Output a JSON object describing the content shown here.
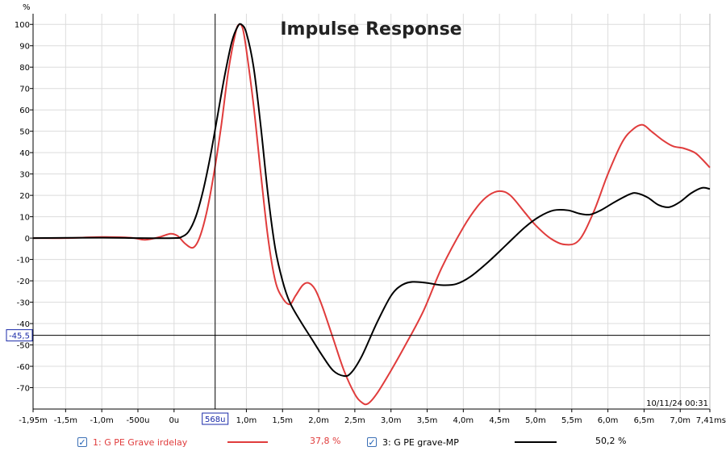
{
  "chart_data": {
    "type": "line",
    "title": "Impulse Response",
    "ylabel": "%",
    "xlabel": "",
    "x_unit": "ms",
    "xlim": [
      -1.95,
      7.41
    ],
    "ylim": [
      -80,
      105
    ],
    "grid": true,
    "x_ticks": [
      {
        "v": -1.95,
        "label": "-1,95m"
      },
      {
        "v": -1.5,
        "label": "-1,5m"
      },
      {
        "v": -1.0,
        "label": "-1,0m"
      },
      {
        "v": -0.5,
        "label": "-500u"
      },
      {
        "v": 0.0,
        "label": "0u"
      },
      {
        "v": 1.0,
        "label": "1,0m"
      },
      {
        "v": 1.5,
        "label": "1,5m"
      },
      {
        "v": 2.0,
        "label": "2,0m"
      },
      {
        "v": 2.5,
        "label": "2,5m"
      },
      {
        "v": 3.0,
        "label": "3,0m"
      },
      {
        "v": 3.5,
        "label": "3,5m"
      },
      {
        "v": 4.0,
        "label": "4,0m"
      },
      {
        "v": 4.5,
        "label": "4,5m"
      },
      {
        "v": 5.0,
        "label": "5,0m"
      },
      {
        "v": 5.5,
        "label": "5,5m"
      },
      {
        "v": 6.0,
        "label": "6,0m"
      },
      {
        "v": 6.5,
        "label": "6,5m"
      },
      {
        "v": 7.0,
        "label": "7,0m"
      },
      {
        "v": 7.41,
        "label": "7,41ms"
      }
    ],
    "y_ticks": [
      100,
      90,
      80,
      70,
      60,
      50,
      40,
      30,
      20,
      10,
      0,
      -10,
      -20,
      -30,
      -40,
      -50,
      -60,
      -70
    ],
    "cursor": {
      "x": 0.568,
      "x_label": "568u",
      "y": -45.5,
      "y_label": "-45,5"
    },
    "timestamp": "10/11/24 00:31",
    "series": [
      {
        "name": "1: G PE Grave irdelay",
        "color": "#e03c3c",
        "value_label": "37,8 %",
        "checked": true,
        "points": [
          [
            -1.95,
            0
          ],
          [
            -1.5,
            0
          ],
          [
            -1.0,
            0.5
          ],
          [
            -0.6,
            0.2
          ],
          [
            -0.4,
            -0.8
          ],
          [
            -0.2,
            0.5
          ],
          [
            -0.05,
            2
          ],
          [
            0.05,
            1
          ],
          [
            0.15,
            -2.5
          ],
          [
            0.26,
            -4.5
          ],
          [
            0.35,
            0
          ],
          [
            0.45,
            12
          ],
          [
            0.55,
            30
          ],
          [
            0.65,
            52
          ],
          [
            0.75,
            78
          ],
          [
            0.85,
            96
          ],
          [
            0.9,
            100
          ],
          [
            0.95,
            98
          ],
          [
            1.0,
            88
          ],
          [
            1.1,
            62
          ],
          [
            1.2,
            30
          ],
          [
            1.3,
            0
          ],
          [
            1.4,
            -20
          ],
          [
            1.5,
            -28
          ],
          [
            1.6,
            -31
          ],
          [
            1.68,
            -27
          ],
          [
            1.78,
            -22
          ],
          [
            1.86,
            -21
          ],
          [
            1.95,
            -24
          ],
          [
            2.05,
            -32
          ],
          [
            2.2,
            -47
          ],
          [
            2.35,
            -62
          ],
          [
            2.5,
            -73
          ],
          [
            2.6,
            -77
          ],
          [
            2.68,
            -77.5
          ],
          [
            2.8,
            -73
          ],
          [
            3.0,
            -62
          ],
          [
            3.2,
            -50
          ],
          [
            3.45,
            -34
          ],
          [
            3.7,
            -14
          ],
          [
            4.0,
            5
          ],
          [
            4.2,
            15
          ],
          [
            4.35,
            20
          ],
          [
            4.5,
            22
          ],
          [
            4.65,
            20
          ],
          [
            4.85,
            12
          ],
          [
            5.0,
            6
          ],
          [
            5.2,
            0
          ],
          [
            5.4,
            -3
          ],
          [
            5.6,
            -1
          ],
          [
            5.8,
            12
          ],
          [
            6.0,
            30
          ],
          [
            6.2,
            45
          ],
          [
            6.35,
            51
          ],
          [
            6.48,
            53
          ],
          [
            6.6,
            50
          ],
          [
            6.75,
            46
          ],
          [
            6.9,
            43
          ],
          [
            7.05,
            42
          ],
          [
            7.2,
            40
          ],
          [
            7.3,
            37
          ],
          [
            7.41,
            33
          ]
        ]
      },
      {
        "name": "3: G PE grave-MP",
        "color": "#000000",
        "value_label": "50,2 %",
        "checked": true,
        "points": [
          [
            -1.95,
            0
          ],
          [
            -1.0,
            0.2
          ],
          [
            -0.5,
            0
          ],
          [
            0.0,
            0
          ],
          [
            0.1,
            0.5
          ],
          [
            0.2,
            3
          ],
          [
            0.3,
            10
          ],
          [
            0.4,
            22
          ],
          [
            0.5,
            38
          ],
          [
            0.6,
            57
          ],
          [
            0.7,
            76
          ],
          [
            0.8,
            92
          ],
          [
            0.88,
            99
          ],
          [
            0.93,
            100
          ],
          [
            1.0,
            96
          ],
          [
            1.1,
            80
          ],
          [
            1.2,
            52
          ],
          [
            1.3,
            20
          ],
          [
            1.4,
            -5
          ],
          [
            1.5,
            -20
          ],
          [
            1.6,
            -30
          ],
          [
            1.75,
            -39
          ],
          [
            1.9,
            -47
          ],
          [
            2.05,
            -55
          ],
          [
            2.2,
            -62
          ],
          [
            2.35,
            -64.5
          ],
          [
            2.45,
            -63
          ],
          [
            2.6,
            -55
          ],
          [
            2.8,
            -40
          ],
          [
            3.0,
            -27
          ],
          [
            3.15,
            -22
          ],
          [
            3.3,
            -20.5
          ],
          [
            3.5,
            -21
          ],
          [
            3.7,
            -22
          ],
          [
            3.9,
            -21.5
          ],
          [
            4.1,
            -18
          ],
          [
            4.35,
            -11
          ],
          [
            4.6,
            -3
          ],
          [
            4.85,
            5
          ],
          [
            5.05,
            10
          ],
          [
            5.25,
            13
          ],
          [
            5.45,
            13
          ],
          [
            5.6,
            11.5
          ],
          [
            5.75,
            11
          ],
          [
            5.9,
            13
          ],
          [
            6.1,
            17
          ],
          [
            6.3,
            20.5
          ],
          [
            6.4,
            21
          ],
          [
            6.55,
            19
          ],
          [
            6.7,
            15.5
          ],
          [
            6.85,
            14.5
          ],
          [
            7.0,
            17
          ],
          [
            7.15,
            21
          ],
          [
            7.3,
            23.5
          ],
          [
            7.41,
            23
          ]
        ]
      }
    ]
  }
}
